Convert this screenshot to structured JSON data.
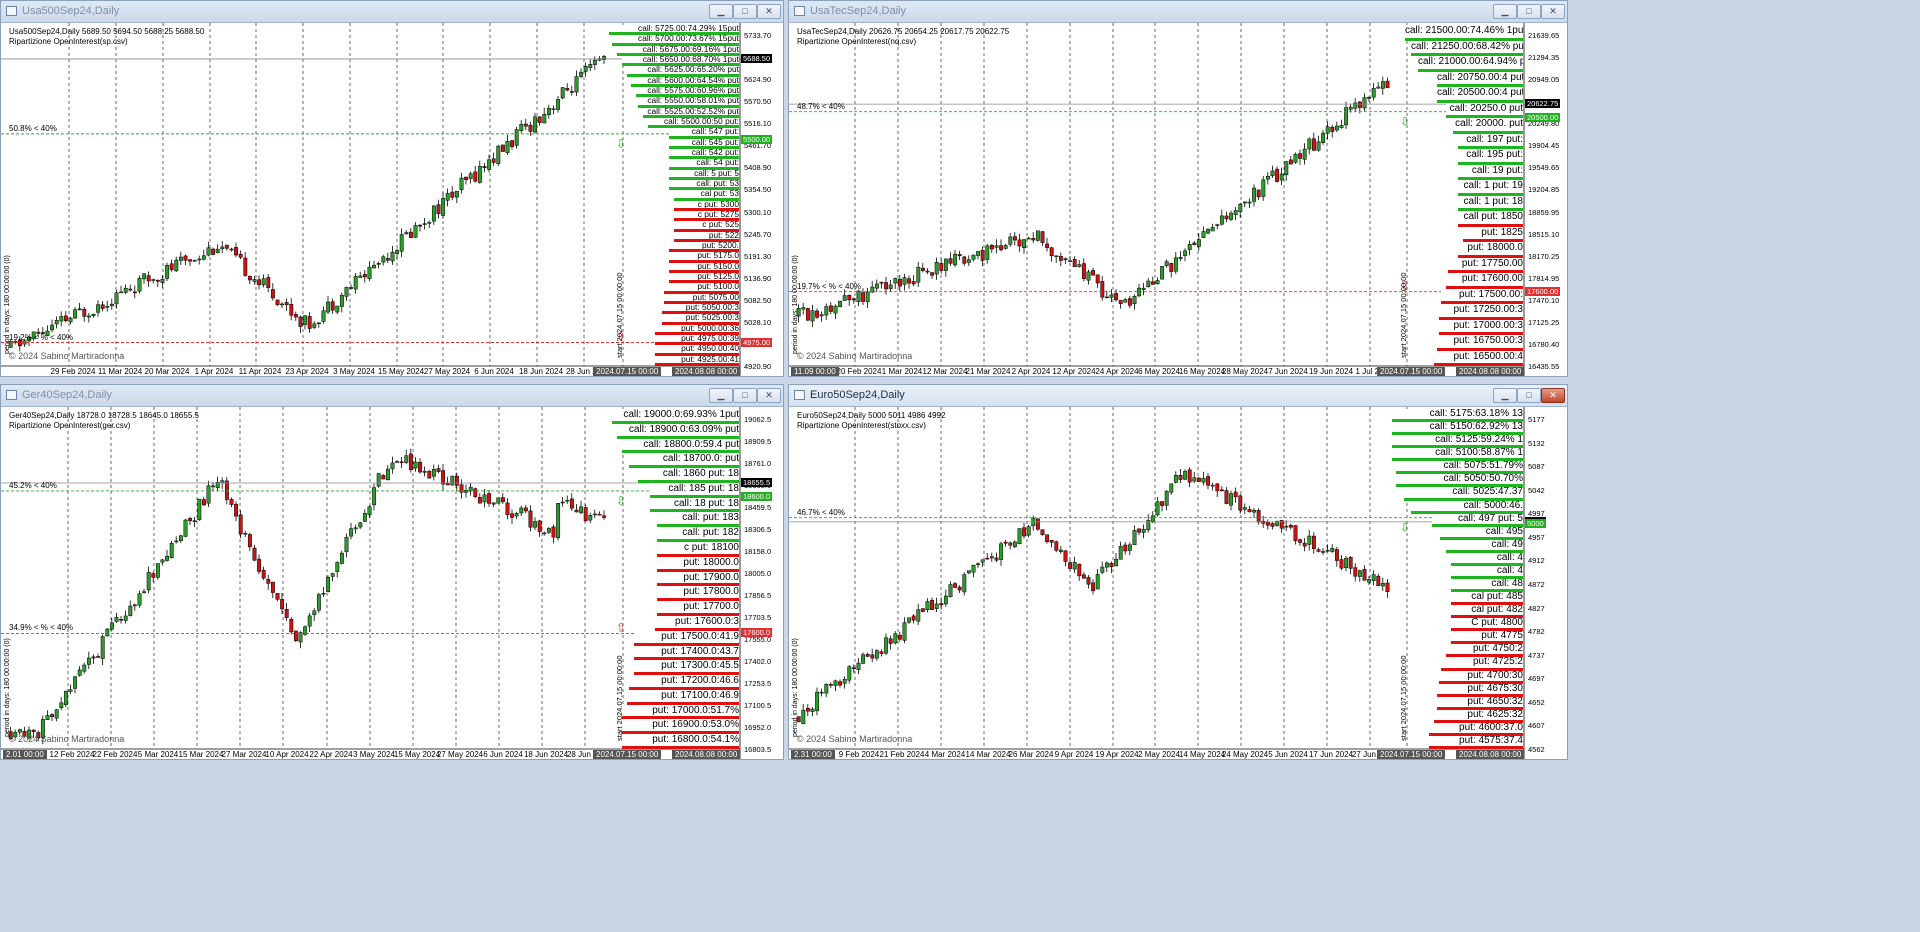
{
  "windows": [
    {
      "id": "sp",
      "title": "Usa500Sep24,Daily",
      "active": false,
      "header": "Usa500Sep24,Daily  5689.50 5694.50 5688.25 5688.50",
      "subtitle": "Ripartizione OpenInterest(sp.csv)",
      "copyright": "© 2024 Sabino Martiradonna",
      "x_labels": [
        "29 Feb 2024",
        "11 Mar 2024",
        "20 Mar 2024",
        "1 Apr 2024",
        "11 Apr 2024",
        "23 Apr 2024",
        "3 May 2024",
        "15 May 2024",
        "27 May 2024",
        "6 Jun 2024",
        "18 Jun 2024",
        "28 Jun 2024"
      ],
      "x_start_label": "",
      "x_now": "2024.07.15 00:00",
      "x_end": "2024.08.08 00:00",
      "y_labels": [
        "5733.70",
        "5679.25",
        "5624.90",
        "5570.50",
        "5516.10",
        "5461.70",
        "5408.90",
        "5354.50",
        "5300.10",
        "5245.70",
        "5191.30",
        "5136.90",
        "5082.50",
        "5028.10",
        "4973.70",
        "4920.90"
      ],
      "y_current": "5688.50",
      "y_high_mark": "5500.00",
      "y_low_mark": "4975.00",
      "pct_high": "50.8% < 40%",
      "pct_low": "19.2% < % < 40%",
      "vertical_label": "start 2024.07.15 00:00:00",
      "side_axis": "period in days: 180 00:00:00 (0)",
      "ymin": 4920.9,
      "ymax": 5733.7,
      "close": 5688.5,
      "high_mark": 5500,
      "low_mark": 4975,
      "oi": [
        {
          "t": "call: 5725.00:74.29% 15put",
          "k": "call",
          "w": 0.95
        },
        {
          "t": "call: 5700.00:73.67% 15put",
          "k": "call",
          "w": 0.92
        },
        {
          "t": "call: 5675.00:69.16% 1put",
          "k": "call",
          "w": 0.88
        },
        {
          "t": "call: 5650.00:68.70% 1put",
          "k": "call",
          "w": 0.84
        },
        {
          "t": "call: 5625.00:65.20% put",
          "k": "call",
          "w": 0.8
        },
        {
          "t": "call: 5600.00:64.54% put",
          "k": "call",
          "w": 0.76
        },
        {
          "t": "call: 5575.00:60.96% put",
          "k": "call",
          "w": 0.72
        },
        {
          "t": "call: 5550.00:58.01% put",
          "k": "call",
          "w": 0.7
        },
        {
          "t": "call: 5525.00:52.52% put",
          "k": "call",
          "w": 0.66
        },
        {
          "t": "call: 5500.00:50 put:",
          "k": "call",
          "w": 0.62
        },
        {
          "t": "call: 547 put:",
          "k": "call",
          "w": 0.44
        },
        {
          "t": "call: 545 put:",
          "k": "call",
          "w": 0.44
        },
        {
          "t": "call: 542 put:",
          "k": "call",
          "w": 0.44
        },
        {
          "t": "call: 54 put:",
          "k": "call",
          "w": 0.44
        },
        {
          "t": "call: 5 put: 5",
          "k": "call",
          "w": 0.44
        },
        {
          "t": "call: put: 53",
          "k": "call",
          "w": 0.44
        },
        {
          "t": "cal put: 53",
          "k": "call",
          "w": 0.4
        },
        {
          "t": "c put: 5300",
          "k": "put",
          "w": 0.4
        },
        {
          "t": "c put: 5275",
          "k": "put",
          "w": 0.4
        },
        {
          "t": "c put: 525",
          "k": "put",
          "w": 0.4
        },
        {
          "t": "put: 522",
          "k": "put",
          "w": 0.4
        },
        {
          "t": "put: 5200.",
          "k": "put",
          "w": 0.44
        },
        {
          "t": "put: 5175.0",
          "k": "put",
          "w": 0.44
        },
        {
          "t": "put: 5150.0",
          "k": "put",
          "w": 0.44
        },
        {
          "t": "put: 5125.0",
          "k": "put",
          "w": 0.44
        },
        {
          "t": "put: 5100.0",
          "k": "put",
          "w": 0.48
        },
        {
          "t": "put: 5075.00",
          "k": "put",
          "w": 0.48
        },
        {
          "t": "put: 5050.00:3",
          "k": "put",
          "w": 0.5
        },
        {
          "t": "put: 5025.00:3",
          "k": "put",
          "w": 0.5
        },
        {
          "t": "put: 5000.00:36",
          "k": "put",
          "w": 0.56
        },
        {
          "t": "put: 4975.00:39",
          "k": "put",
          "w": 0.56
        },
        {
          "t": "put: 4950.00:40",
          "k": "put",
          "w": 0.56
        },
        {
          "t": "put: 4925.00:41",
          "k": "put",
          "w": 0.56
        }
      ],
      "seed": 11,
      "trend": "sp"
    },
    {
      "id": "nq",
      "title": "UsaTecSep24,Daily",
      "active": false,
      "header": "UsaTecSep24,Daily  20626.75 20654.25 20617.75 20622.75",
      "subtitle": "Ripartizione OpenInterest(nq.csv)",
      "copyright": "© 2024 Sabino Martiradonna",
      "x_labels": [
        "20 Feb 2024",
        "1 Mar 2024",
        "12 Mar 2024",
        "21 Mar 2024",
        "2 Apr 2024",
        "12 Apr 2024",
        "24 Apr 2024",
        "6 May 2024",
        "16 May 2024",
        "28 May 2024",
        "7 Jun 2024",
        "19 Jun 2024",
        "1 Jul 2024"
      ],
      "x_start_label": "11.09 00:00",
      "x_now": "2024.07.15 00:00",
      "x_end": "2024.08.08 00:00",
      "y_labels": [
        "21639.65",
        "21294.35",
        "20949.05",
        "20594.75",
        "20249.80",
        "19904.45",
        "19549.65",
        "19204.85",
        "18859.95",
        "18515.10",
        "18170.25",
        "17814.95",
        "17470.10",
        "17125.25",
        "16780.40",
        "16435.55"
      ],
      "y_current": "20622.75",
      "y_high_mark": "20500.00",
      "y_low_mark": "17600.00",
      "pct_high": "48.7% < 40%",
      "pct_low": "19.7% < % < 40%",
      "vertical_label": "start 2024.07.15 00:00:00",
      "side_axis": "period in days: 180 00:00:00 (0)",
      "ymin": 16435.55,
      "ymax": 21639.65,
      "close": 20622.75,
      "high_mark": 20500,
      "low_mark": 17600,
      "oi": [
        {
          "t": "call: 21500.00:74.46% 1put",
          "k": "call",
          "w": 0.85
        },
        {
          "t": "call: 21250.00:68.42% put",
          "k": "call",
          "w": 0.8
        },
        {
          "t": "call: 21000.00:64.94% put",
          "k": "call",
          "w": 0.74
        },
        {
          "t": "call: 20750.00:4 put",
          "k": "call",
          "w": 0.58
        },
        {
          "t": "call: 20500.00:4 put",
          "k": "call",
          "w": 0.58
        },
        {
          "t": "call: 20250.0 put",
          "k": "call",
          "w": 0.5
        },
        {
          "t": "call: 20000. put",
          "k": "call",
          "w": 0.44
        },
        {
          "t": "call: 197 put:",
          "k": "call",
          "w": 0.4
        },
        {
          "t": "call: 195 put:",
          "k": "call",
          "w": 0.4
        },
        {
          "t": "call: 19 put:",
          "k": "call",
          "w": 0.4
        },
        {
          "t": "call: 1 put: 19",
          "k": "call",
          "w": 0.4
        },
        {
          "t": "call: 1 put: 18",
          "k": "call",
          "w": 0.4
        },
        {
          "t": "call put: 1850",
          "k": "put",
          "w": 0.4
        },
        {
          "t": "put: 1825",
          "k": "put",
          "w": 0.36
        },
        {
          "t": "put: 18000.0",
          "k": "put",
          "w": 0.4
        },
        {
          "t": "put: 17750.00",
          "k": "put",
          "w": 0.48
        },
        {
          "t": "put: 17600.00",
          "k": "put",
          "w": 0.5
        },
        {
          "t": "put: 17500.00:",
          "k": "put",
          "w": 0.54
        },
        {
          "t": "put: 17250.00:3",
          "k": "put",
          "w": 0.56
        },
        {
          "t": "put: 17000.00:3",
          "k": "put",
          "w": 0.56
        },
        {
          "t": "put: 16750.00:3",
          "k": "put",
          "w": 0.58
        },
        {
          "t": "put: 16500.00:4",
          "k": "put",
          "w": 0.6
        }
      ],
      "seed": 29,
      "trend": "nq"
    },
    {
      "id": "ger",
      "title": "Ger40Sep24,Daily",
      "active": false,
      "header": "Ger40Sep24,Daily  18728.0 18728.5 18645.0 18655.5",
      "subtitle": "Ripartizione OpenInterest(ger.csv)",
      "copyright": "© 2024 Sabino Martiradonna",
      "x_labels": [
        "12 Feb 2024",
        "22 Feb 2024",
        "5 Mar 2024",
        "15 Mar 2024",
        "27 Mar 2024",
        "10 Apr 2024",
        "22 Apr 2024",
        "3 May 2024",
        "15 May 2024",
        "27 May 2024",
        "6 Jun 2024",
        "18 Jun 2024",
        "28 Jun 2024"
      ],
      "x_start_label": "2.01 00:00",
      "x_now": "2024.07.15 00:00",
      "x_end": "2024.08.08 00:00",
      "y_labels": [
        "19062.5",
        "18909.5",
        "18761.0",
        "18608.0",
        "18459.5",
        "18306.5",
        "18158.0",
        "18005.0",
        "17856.5",
        "17703.5",
        "17555.0",
        "17402.0",
        "17253.5",
        "17100.5",
        "16952.0",
        "16803.5"
      ],
      "y_current": "18655.5",
      "y_high_mark": "18600.0",
      "y_low_mark": "17600.0",
      "pct_high": "45.2% < 40%",
      "pct_low": "34.9% < % < 40%",
      "vertical_label": "start 2024.07.15 00:00:00",
      "side_axis": "period in days: 180 00:00:00 (0)",
      "ymin": 16803.5,
      "ymax": 19062.5,
      "close": 18655.5,
      "high_mark": 18600,
      "low_mark": 17600,
      "oi": [
        {
          "t": "call: 19000.0:69.93% 1put",
          "k": "call",
          "w": 0.92
        },
        {
          "t": "call: 18900.0:63.09% put",
          "k": "call",
          "w": 0.88
        },
        {
          "t": "call: 18800.0:59.4 put",
          "k": "call",
          "w": 0.84
        },
        {
          "t": "call: 18700.0: put",
          "k": "call",
          "w": 0.78
        },
        {
          "t": "call: 1860 put: 18",
          "k": "call",
          "w": 0.7
        },
        {
          "t": "call: 185 put: 18",
          "k": "call",
          "w": 0.6
        },
        {
          "t": "call: 18 put: 18",
          "k": "call",
          "w": 0.6
        },
        {
          "t": "call: put: 183",
          "k": "call",
          "w": 0.54
        },
        {
          "t": "call: put: 182",
          "k": "call",
          "w": 0.54
        },
        {
          "t": "c put: 18100",
          "k": "put",
          "w": 0.54
        },
        {
          "t": "put: 18000.0",
          "k": "put",
          "w": 0.54
        },
        {
          "t": "put: 17900.0",
          "k": "put",
          "w": 0.54
        },
        {
          "t": "put: 17800.0",
          "k": "put",
          "w": 0.54
        },
        {
          "t": "put: 17700.0",
          "k": "put",
          "w": 0.54
        },
        {
          "t": "put: 17600.0:3",
          "k": "put",
          "w": 0.56
        },
        {
          "t": "put: 17500.0:41.9",
          "k": "put",
          "w": 0.74
        },
        {
          "t": "put: 17400.0:43.7",
          "k": "put",
          "w": 0.74
        },
        {
          "t": "put: 17300.0:45.5",
          "k": "put",
          "w": 0.74
        },
        {
          "t": "put: 17200.0:46.6",
          "k": "put",
          "w": 0.78
        },
        {
          "t": "put: 17100.0:46.9",
          "k": "put",
          "w": 0.8
        },
        {
          "t": "put: 17000.0:51.7%",
          "k": "put",
          "w": 0.84
        },
        {
          "t": "put: 16900.0:53.0%",
          "k": "put",
          "w": 0.84
        },
        {
          "t": "put: 16800.0:54.1%",
          "k": "put",
          "w": 0.84
        }
      ],
      "seed": 53,
      "trend": "ger"
    },
    {
      "id": "stoxx",
      "title": "Euro50Sep24,Daily",
      "active": true,
      "header": "Euro50Sep24,Daily  5000 5011 4986 4992",
      "subtitle": "Ripartizione OpenInterest(stoxx.csv)",
      "copyright": "© 2024 Sabino Martiradonna",
      "x_labels": [
        "9 Feb 2024",
        "21 Feb 2024",
        "4 Mar 2024",
        "14 Mar 2024",
        "26 Mar 2024",
        "9 Apr 2024",
        "19 Apr 2024",
        "2 May 2024",
        "14 May 2024",
        "24 May 2024",
        "5 Jun 2024",
        "17 Jun 2024",
        "27 Jun 2024"
      ],
      "x_start_label": "2.31 00:00",
      "x_now": "2024.07.15 00:00",
      "x_end": "2024.08.08 00:00",
      "y_labels": [
        "5177",
        "5132",
        "5087",
        "5042",
        "4997",
        "4957",
        "4912",
        "4872",
        "4827",
        "4782",
        "4737",
        "4697",
        "4652",
        "4607",
        "4562"
      ],
      "y_current": "4992",
      "y_high_mark": "5000",
      "y_low_mark": "",
      "pct_high": "46.7% < 40%",
      "pct_low": "",
      "vertical_label": "start 2024.07.15 00:00:00",
      "side_axis": "period in days: 180 00:00:00 (0)",
      "ymin": 4562,
      "ymax": 5177,
      "close": 4992,
      "high_mark": 5000,
      "low_mark": null,
      "oi": [
        {
          "t": "call: 5175:63.18% 13",
          "k": "call",
          "w": 0.96
        },
        {
          "t": "call: 5150:62.92% 13",
          "k": "call",
          "w": 0.96
        },
        {
          "t": "call: 5125:59.24% 1",
          "k": "call",
          "w": 0.96
        },
        {
          "t": "call: 5100:58.87% 1",
          "k": "call",
          "w": 0.96
        },
        {
          "t": "call: 5075:51.79%",
          "k": "call",
          "w": 0.92
        },
        {
          "t": "call: 5050:50.70%",
          "k": "call",
          "w": 0.92
        },
        {
          "t": "call: 5025:47.37",
          "k": "call",
          "w": 0.86
        },
        {
          "t": "call: 5000:46.",
          "k": "call",
          "w": 0.8
        },
        {
          "t": "call: 497 put: 5",
          "k": "call",
          "w": 0.62
        },
        {
          "t": "call: 495",
          "k": "call",
          "w": 0.55
        },
        {
          "t": "call: 49",
          "k": "call",
          "w": 0.5
        },
        {
          "t": "call: 4",
          "k": "call",
          "w": 0.46
        },
        {
          "t": "call: 4",
          "k": "call",
          "w": 0.46
        },
        {
          "t": "call: 48",
          "k": "call",
          "w": 0.46
        },
        {
          "t": "cal put: 485",
          "k": "put",
          "w": 0.46
        },
        {
          "t": "cal put: 482",
          "k": "put",
          "w": 0.46
        },
        {
          "t": "C put: 4800",
          "k": "put",
          "w": 0.46
        },
        {
          "t": "put: 4775",
          "k": "put",
          "w": 0.46
        },
        {
          "t": "put: 4750:2",
          "k": "put",
          "w": 0.5
        },
        {
          "t": "put: 4725:2",
          "k": "put",
          "w": 0.54
        },
        {
          "t": "put: 4700:30",
          "k": "put",
          "w": 0.56
        },
        {
          "t": "put: 4675:30",
          "k": "put",
          "w": 0.58
        },
        {
          "t": "put: 4650:32",
          "k": "put",
          "w": 0.58
        },
        {
          "t": "put: 4625:32",
          "k": "put",
          "w": 0.6
        },
        {
          "t": "put: 4600:37.0",
          "k": "put",
          "w": 0.64
        },
        {
          "t": "put: 4575:37.4",
          "k": "put",
          "w": 0.64
        }
      ],
      "seed": 71,
      "trend": "stoxx"
    }
  ],
  "colors": {
    "up": "#2e9a2e",
    "down": "#c81414",
    "grid": "#000000",
    "call": "#1fb51f",
    "put": "#e01010",
    "high_line": "#22b022",
    "low_line": "#e03030"
  },
  "icons": {
    "minimize": "minimize-icon",
    "maximize": "maximize-icon",
    "close": "close-icon"
  },
  "button_glyphs": {
    "minimize": "▁",
    "maximize": "□",
    "close": "✕"
  }
}
